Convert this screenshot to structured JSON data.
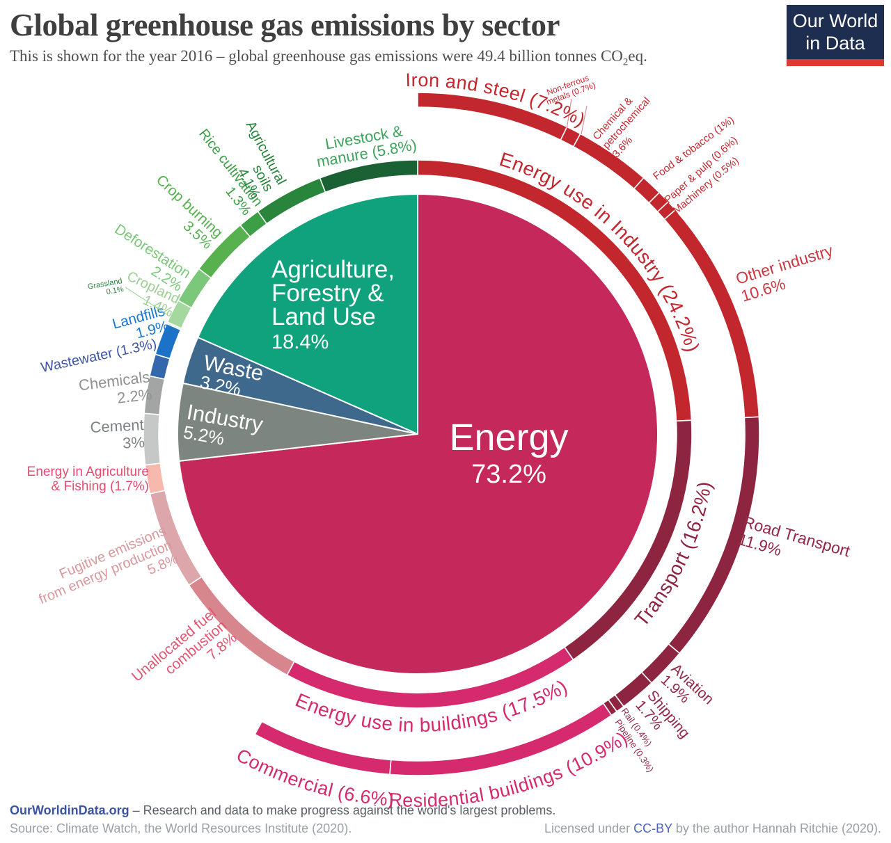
{
  "header": {
    "title": "Global greenhouse gas emissions by sector",
    "subtitle_prefix": "This is shown for the year 2016 – global greenhouse gas emissions were 49.4 billion tonnes CO",
    "subtitle_sub": "2",
    "subtitle_suffix": "eq.",
    "logo": {
      "line1": "Our World",
      "line2": "in Data",
      "bg_color": "#1e2e51",
      "bar_color": "#de3a2f"
    }
  },
  "footer": {
    "link": "OurWorldinData.org",
    "tagline": " – Research and data to make progress against the world's largest problems.",
    "source": "Source: Climate Watch, the World Resources Institute (2020).",
    "license_prefix": "Licensed under ",
    "license_link": "CC-BY",
    "license_suffix": " by the author Hannah Ritchie  (2020)."
  },
  "chart_data": {
    "type": "sunburst",
    "unit": "%",
    "sectors": [
      {
        "id": "energy",
        "label": "Energy",
        "value": 73.2,
        "color": "#C5295C"
      },
      {
        "id": "industry",
        "label": "Industry",
        "value": 5.2,
        "color": "#7D8581"
      },
      {
        "id": "waste",
        "label": "Waste",
        "value": 3.2,
        "color": "#3F698C"
      },
      {
        "id": "afolu",
        "label": "Agriculture, Forestry & Land Use",
        "value": 18.4,
        "color": "#10A27C"
      }
    ],
    "middle_ring": [
      {
        "id": "eui_ring",
        "label": "Energy use in Industry",
        "value": 24.2,
        "color": "#C3272E"
      },
      {
        "id": "transport_ring",
        "label": "Transport",
        "value": 16.2,
        "color": "#8D2440"
      },
      {
        "id": "buildings_ring",
        "label": "Energy use in buildings",
        "value": 17.5,
        "color": "#D62A6E"
      },
      {
        "id": "unallocated",
        "label": "Unallocated fuel combustion",
        "value": 7.8,
        "color": "#D8868E"
      },
      {
        "id": "fugitive",
        "label": "Fugitive emissions from energy production",
        "value": 5.8,
        "color": "#DCA6AB"
      },
      {
        "id": "energy_ag",
        "label": "Energy in Agriculture & Fishing",
        "value": 1.7,
        "color": "#F7B9AE"
      },
      {
        "id": "cement",
        "label": "Cement",
        "value": 3,
        "color": "#C5C8C7"
      },
      {
        "id": "chemicals",
        "label": "Chemicals",
        "value": 2.2,
        "color": "#A2A5A4"
      },
      {
        "id": "wastewater",
        "label": "Wastewater",
        "value": 1.3,
        "color": "#3467AC"
      },
      {
        "id": "landfills",
        "label": "Landfills",
        "value": 1.9,
        "color": "#1C72C6"
      },
      {
        "id": "grassland",
        "label": "Grassland",
        "value": 0.1,
        "color": "#D9EED6"
      },
      {
        "id": "cropland",
        "label": "Cropland",
        "value": 1.4,
        "color": "#A5D89E"
      },
      {
        "id": "deforestation",
        "label": "Deforestation",
        "value": 2.2,
        "color": "#7CC87A"
      },
      {
        "id": "crop_burning",
        "label": "Crop burning",
        "value": 3.5,
        "color": "#57B14F"
      },
      {
        "id": "rice",
        "label": "Rice cultivation",
        "value": 1.3,
        "color": "#3C9E45"
      },
      {
        "id": "ag_soils",
        "label": "Agricultural soils",
        "value": 4.1,
        "color": "#2A853C"
      },
      {
        "id": "livestock",
        "label": "Livestock & manure",
        "value": 5.8,
        "color": "#1A6134"
      }
    ],
    "outer_ring": [
      {
        "id": "iron_steel",
        "label": "Iron and steel",
        "value": 7.2,
        "color": "#C3272E"
      },
      {
        "id": "nonferrous",
        "label": "Non-ferrous metals",
        "value": 0.7,
        "color": "#C3272E"
      },
      {
        "id": "chem_petro",
        "label": "Chemical & petrochemical",
        "value": 3.6,
        "color": "#C3272E"
      },
      {
        "id": "food_tobacco",
        "label": "Food & tobacco",
        "value": 1,
        "color": "#C3272E"
      },
      {
        "id": "paper_pulp",
        "label": "Paper & pulp",
        "value": 0.6,
        "color": "#C3272E"
      },
      {
        "id": "machinery",
        "label": "Machinery",
        "value": 0.5,
        "color": "#C3272E"
      },
      {
        "id": "other_industry",
        "label": "Other industry",
        "value": 10.6,
        "color": "#C3272E"
      },
      {
        "id": "road",
        "label": "Road Transport",
        "value": 11.9,
        "color": "#8D2440"
      },
      {
        "id": "aviation",
        "label": "Aviation",
        "value": 1.9,
        "color": "#8D2440"
      },
      {
        "id": "shipping",
        "label": "Shipping",
        "value": 1.7,
        "color": "#8D2440"
      },
      {
        "id": "rail",
        "label": "Rail",
        "value": 0.4,
        "color": "#8D2440"
      },
      {
        "id": "pipeline",
        "label": "Pipeline",
        "value": 0.3,
        "color": "#8D2440"
      },
      {
        "id": "residential",
        "label": "Residential buildings",
        "value": 10.9,
        "color": "#D62A6E"
      },
      {
        "id": "commercial",
        "label": "Commercial",
        "value": 6.6,
        "color": "#D62A6E"
      }
    ],
    "labels": {
      "iron_steel": {
        "lines": [
          "Iron and steel (7.2%)"
        ],
        "color": "#C3272E"
      },
      "nonferrous": {
        "lines": [
          "Non-ferrous",
          "metals (0.7%)"
        ],
        "color": "#C3272E"
      },
      "chem_petro": {
        "lines": [
          "Chemical &",
          "petrochemical",
          "3.6%"
        ],
        "color": "#C3272E"
      },
      "food_tobacco": {
        "lines": [
          "Food & tobacco (1%)"
        ],
        "color": "#C3272E"
      },
      "paper_pulp": {
        "lines": [
          "Paper & pulp (0.6%)"
        ],
        "color": "#C3272E"
      },
      "machinery": {
        "lines": [
          "Machinery (0.5%)"
        ],
        "color": "#C3272E"
      },
      "other_industry": {
        "lines": [
          "Other industry",
          "10.6%"
        ],
        "color": "#CB3840"
      },
      "eui_ring": {
        "lines": [
          "Energy use in Industry (24.2%)"
        ],
        "color": "#C3272E"
      },
      "transport_ring": {
        "lines": [
          "Transport (16.2%)"
        ],
        "color": "#8D2440"
      },
      "road": {
        "lines": [
          "Road Transport",
          "11.9%"
        ],
        "color": "#932946"
      },
      "aviation": {
        "lines": [
          "Aviation",
          "1.9%"
        ],
        "color": "#932946"
      },
      "shipping": {
        "lines": [
          "Shipping",
          "1.7%"
        ],
        "color": "#932946"
      },
      "rail": {
        "lines": [
          "Rail (0.4%)"
        ],
        "color": "#932946"
      },
      "pipeline": {
        "lines": [
          "Pipeline (0.3%)"
        ],
        "color": "#932946"
      },
      "buildings_ring": {
        "lines": [
          "Energy use in buildings (17.5%)"
        ],
        "color": "#D62A6E"
      },
      "residential": {
        "lines": [
          "Residential buildings (10.9%)"
        ],
        "color": "#D62A6E"
      },
      "commercial": {
        "lines": [
          "Commercial (6.6%)"
        ],
        "color": "#D62A6E"
      },
      "unallocated": {
        "lines": [
          "Unallocated fuel",
          "combustion",
          "7.8%"
        ],
        "color": "#E25672"
      },
      "fugitive": {
        "lines": [
          "Fugitive emissions",
          "from energy production",
          "5.8%"
        ],
        "color": "#D9979E"
      },
      "energy_ag": {
        "lines": [
          "Energy in Agriculture",
          "& Fishing (1.7%)"
        ],
        "color": "#E84A6E"
      },
      "cement": {
        "lines": [
          "Cement",
          "3%"
        ],
        "color": "#7E8284"
      },
      "chemicals": {
        "lines": [
          "Chemicals",
          "2.2%"
        ],
        "color": "#8E918F"
      },
      "wastewater": {
        "lines": [
          "Wastewater (1.3%)"
        ],
        "color": "#3F55A6"
      },
      "landfills": {
        "lines": [
          "Landfills",
          "1.9%"
        ],
        "color": "#1D79CF"
      },
      "grassland": {
        "lines": [
          "Grassland",
          "0.1%"
        ],
        "color": "#2E8040"
      },
      "cropland": {
        "lines": [
          "Cropland",
          "1.4%"
        ],
        "color": "#9CCF93"
      },
      "deforestation": {
        "lines": [
          "Deforestation",
          "2.2%"
        ],
        "color": "#7CC879"
      },
      "crop_burning": {
        "lines": [
          "Crop burning",
          "3.5%"
        ],
        "color": "#57B14F"
      },
      "rice": {
        "lines": [
          "Rice cultivation",
          "1.3%"
        ],
        "color": "#3C9E45"
      },
      "ag_soils": {
        "lines": [
          "Agricultural",
          "soils",
          "4.1%"
        ],
        "color": "#2A853C"
      },
      "livestock": {
        "lines": [
          "Livestock &",
          "manure (5.8%)"
        ],
        "color": "#3EA35B"
      },
      "energy_center": {
        "lines": [
          "Energy",
          "73.2%"
        ],
        "color": "#FFFFFF"
      },
      "afolu_center": {
        "lines": [
          "Agriculture,",
          "Forestry &",
          "Land Use",
          "18.4%"
        ],
        "color": "#FFFFFF"
      },
      "waste_center": {
        "lines": [
          "Waste",
          "3.2%"
        ],
        "color": "#FFFFFF"
      },
      "industry_center": {
        "lines": [
          "Industry",
          "5.2%"
        ],
        "color": "#FFFFFF"
      }
    }
  }
}
